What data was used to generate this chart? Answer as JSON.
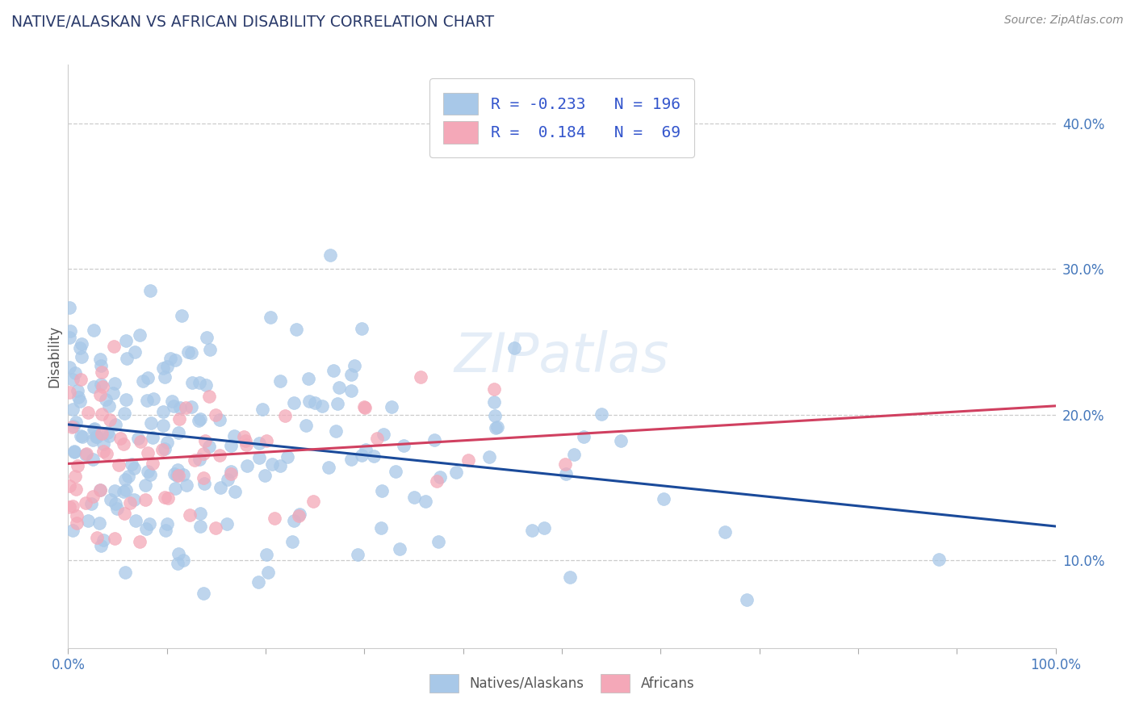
{
  "title": "NATIVE/ALASKAN VS AFRICAN DISABILITY CORRELATION CHART",
  "source": "Source: ZipAtlas.com",
  "ylabel": "Disability",
  "y_ticks": [
    0.1,
    0.2,
    0.3,
    0.4
  ],
  "y_tick_labels": [
    "10.0%",
    "20.0%",
    "30.0%",
    "40.0%"
  ],
  "xlim": [
    0,
    1.0
  ],
  "ylim": [
    0.04,
    0.44
  ],
  "blue_R": -0.233,
  "blue_N": 196,
  "pink_R": 0.184,
  "pink_N": 69,
  "blue_color": "#a8c8e8",
  "pink_color": "#f4a8b8",
  "blue_line_color": "#1a4a9a",
  "pink_line_color": "#d04060",
  "watermark": "ZIPatlas"
}
